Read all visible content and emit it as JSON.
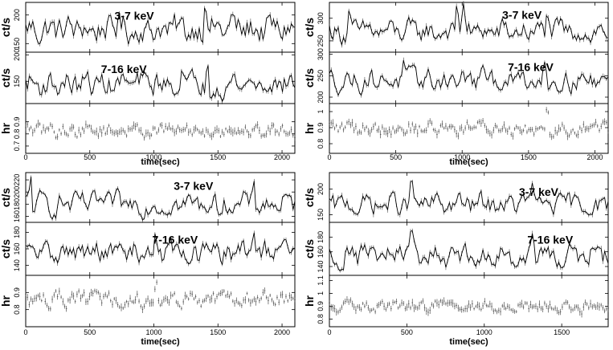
{
  "chart_data": [
    {
      "type": "line",
      "position": "top-left",
      "xlabel": "time(sec)",
      "xlim": [
        0,
        2100
      ],
      "xticks": [
        0,
        500,
        1000,
        1500,
        2000
      ],
      "panels": [
        {
          "ylabel": "ct/s",
          "annotation": "3-7 keV",
          "ylim": [
            135,
            222
          ],
          "yticks": [
            150,
            200
          ],
          "mean": 175,
          "amp": 22,
          "spikes": [
            [
              730,
              205
            ],
            [
              1400,
              221
            ],
            [
              1610,
              210
            ]
          ]
        },
        {
          "ylabel": "ct/s",
          "annotation": "7-16 keV",
          "ylim": [
            108,
            205
          ],
          "yticks": [
            150,
            200
          ],
          "mean": 145,
          "amp": 20,
          "spikes": [
            [
              1220,
              175
            ],
            [
              1420,
              185
            ]
          ]
        },
        {
          "ylabel": "hr",
          "annotation": "",
          "ylim": [
            0.64,
            1.05
          ],
          "yticks": [
            0.7,
            0.8,
            0.9
          ],
          "mean": 0.83,
          "amp": 0.05,
          "errorbars": true,
          "spikes": []
        }
      ]
    },
    {
      "type": "line",
      "position": "top-right",
      "xlabel": "time(sec)",
      "xlim": [
        0,
        2100
      ],
      "xticks": [
        0,
        500,
        1000,
        1500,
        2000
      ],
      "panels": [
        {
          "ylabel": "ct/s",
          "annotation": "3-7 keV",
          "ylim": [
            225,
            335
          ],
          "yticks": [
            250,
            300
          ],
          "mean": 270,
          "amp": 22,
          "spikes": [
            [
              150,
              325
            ],
            [
              960,
              335
            ],
            [
              1010,
              333
            ],
            [
              1640,
              315
            ]
          ]
        },
        {
          "ylabel": "ct/s",
          "annotation": "7-16 keV",
          "ylim": [
            185,
            305
          ],
          "yticks": [
            200,
            250,
            300
          ],
          "mean": 240,
          "amp": 22,
          "spikes": [
            [
              560,
              290
            ],
            [
              1620,
              285
            ]
          ]
        },
        {
          "ylabel": "hr",
          "annotation": "",
          "ylim": [
            0.74,
            1.05
          ],
          "yticks": [
            0.8,
            0.9,
            1
          ],
          "mean": 0.9,
          "amp": 0.04,
          "errorbars": true,
          "spikes": [
            [
              1640,
              1.04
            ]
          ]
        }
      ]
    },
    {
      "type": "line",
      "position": "bottom-left",
      "xlabel": "time(sec)",
      "xlim": [
        0,
        2100
      ],
      "xticks": [
        0,
        500,
        1000,
        1500,
        2000
      ],
      "panels": [
        {
          "ylabel": "ct/s",
          "annotation": "3-7 keV",
          "ylim": [
            150,
            232
          ],
          "yticks": [
            160,
            180,
            200,
            220
          ],
          "mean": 180,
          "amp": 16,
          "spikes": [
            [
              40,
              228
            ],
            [
              1780,
              222
            ]
          ]
        },
        {
          "ylabel": "ct/s",
          "annotation": "7-16 keV",
          "ylim": [
            128,
            192
          ],
          "yticks": [
            140,
            160,
            180
          ],
          "mean": 155,
          "amp": 12,
          "spikes": [
            [
              1010,
              180
            ],
            [
              1780,
              182
            ]
          ]
        },
        {
          "ylabel": "hr",
          "annotation": "",
          "ylim": [
            0.7,
            1.0
          ],
          "yticks": [
            0.8,
            0.9
          ],
          "mean": 0.86,
          "amp": 0.04,
          "errorbars": true,
          "spikes": [
            [
              1020,
              0.97
            ]
          ]
        }
      ]
    },
    {
      "type": "line",
      "position": "bottom-right",
      "xlabel": "time(sec)",
      "xlim": [
        0,
        1800
      ],
      "xticks": [
        0,
        500,
        1000,
        1500
      ],
      "panels": [
        {
          "ylabel": "ct/s",
          "annotation": "3-7 keV",
          "ylim": [
            135,
            232
          ],
          "yticks": [
            150,
            200
          ],
          "mean": 170,
          "amp": 18,
          "spikes": [
            [
              530,
              228
            ],
            [
              1310,
              212
            ]
          ]
        },
        {
          "ylabel": "ct/s",
          "annotation": "7-16 keV",
          "ylim": [
            128,
            200
          ],
          "yticks": [
            140,
            160,
            180
          ],
          "mean": 155,
          "amp": 14,
          "spikes": [
            [
              530,
              198
            ],
            [
              1310,
              185
            ]
          ]
        },
        {
          "ylabel": "hr",
          "annotation": "",
          "ylim": [
            0.74,
            1.14
          ],
          "yticks": [
            0.8,
            0.9,
            1,
            1.1
          ],
          "mean": 0.9,
          "amp": 0.04,
          "errorbars": true,
          "spikes": []
        }
      ]
    }
  ]
}
